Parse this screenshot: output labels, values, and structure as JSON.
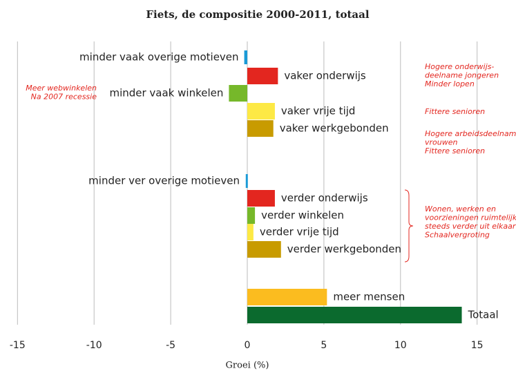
{
  "chart_data": {
    "type": "barh",
    "title": "Fiets, de compositie 2000-2011, totaal",
    "xlabel": "Groei (%)",
    "categories": [
      "minder vaak overige motieven",
      "vaker onderwijs",
      "minder vaak winkelen",
      "vaker vrije tijd",
      "vaker werkgebonden",
      "minder ver overige motieven",
      "verder onderwijs",
      "verder winkelen",
      "verder vrije tijd",
      "verder werkgebonden",
      "meer mensen",
      "Totaal"
    ],
    "values": [
      -0.2,
      2.0,
      -1.2,
      1.8,
      1.7,
      -0.1,
      1.8,
      0.5,
      0.4,
      2.2,
      5.2,
      14.0
    ],
    "colors": [
      "#1a9ad6",
      "#e3261f",
      "#76b82a",
      "#fde945",
      "#c89b00",
      "#1a9ad6",
      "#e3261f",
      "#76b82a",
      "#fde945",
      "#c89b00",
      "#fbbc1f",
      "#0b6a2e"
    ],
    "xlim": [
      -15.6,
      15.6
    ],
    "xticks": [
      -15,
      -10,
      -5,
      0,
      5,
      10,
      15
    ],
    "grid": true,
    "annotations": [
      [
        "Hogere onderwijs-",
        "deelname jongeren",
        "Minder lopen"
      ],
      [
        "Meer webwinkelen",
        "Na 2007 recessie"
      ],
      [
        "Fittere senioren"
      ],
      [
        "Hogere arbeidsdeelname",
        "vrouwen",
        "Fittere senioren"
      ],
      [
        "Wonen, werken en",
        "voorzieningen ruimtelijk",
        "steeds verder uit elkaar",
        "Schaalvergroting"
      ]
    ]
  }
}
